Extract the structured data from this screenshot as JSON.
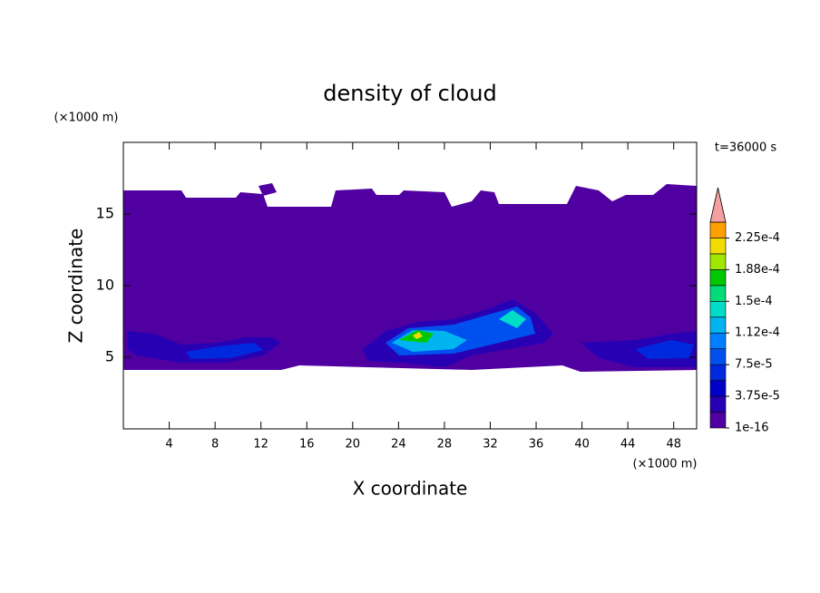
{
  "chart_data": {
    "type": "contour",
    "title": "density of cloud",
    "xlabel": "X coordinate",
    "ylabel": "Z coordinate",
    "x_unit": "(×1000 m)",
    "y_unit": "(×1000 m)",
    "annotation": "t=36000 s",
    "xlim": [
      0,
      50
    ],
    "xticks": [
      4,
      8,
      12,
      16,
      20,
      24,
      28,
      32,
      36,
      40,
      44,
      48
    ],
    "ylim": [
      0,
      20
    ],
    "yticks": [
      5,
      10,
      15
    ],
    "levels": [
      1e-16,
      1.875e-05,
      3.75e-05,
      5.625e-05,
      7.5e-05,
      9.375e-05,
      0.0001125,
      0.00013125,
      0.00015,
      0.00016875,
      0.0001875,
      0.00020625,
      0.000225,
      0.00024375
    ],
    "colors": [
      "#5000a0",
      "#2800b4",
      "#0000c8",
      "#0028dc",
      "#0050f0",
      "#0080ff",
      "#00b4f0",
      "#00dcc8",
      "#00dc78",
      "#00c800",
      "#a0e600",
      "#f0dc00",
      "#ffa000",
      "#ff5000"
    ],
    "extend_color": "#f4a0a0",
    "cticks": [
      {
        "value": 1e-16,
        "label": "1e-16"
      },
      {
        "value": 3.75e-05,
        "label": "3.75e-5"
      },
      {
        "value": 7.5e-05,
        "label": "7.5e-5"
      },
      {
        "value": 0.0001125,
        "label": "1.12e-4"
      },
      {
        "value": 0.00015,
        "label": "1.5e-4"
      },
      {
        "value": 0.0001875,
        "label": "1.88e-4"
      },
      {
        "value": 0.000225,
        "label": "2.25e-4"
      }
    ]
  }
}
